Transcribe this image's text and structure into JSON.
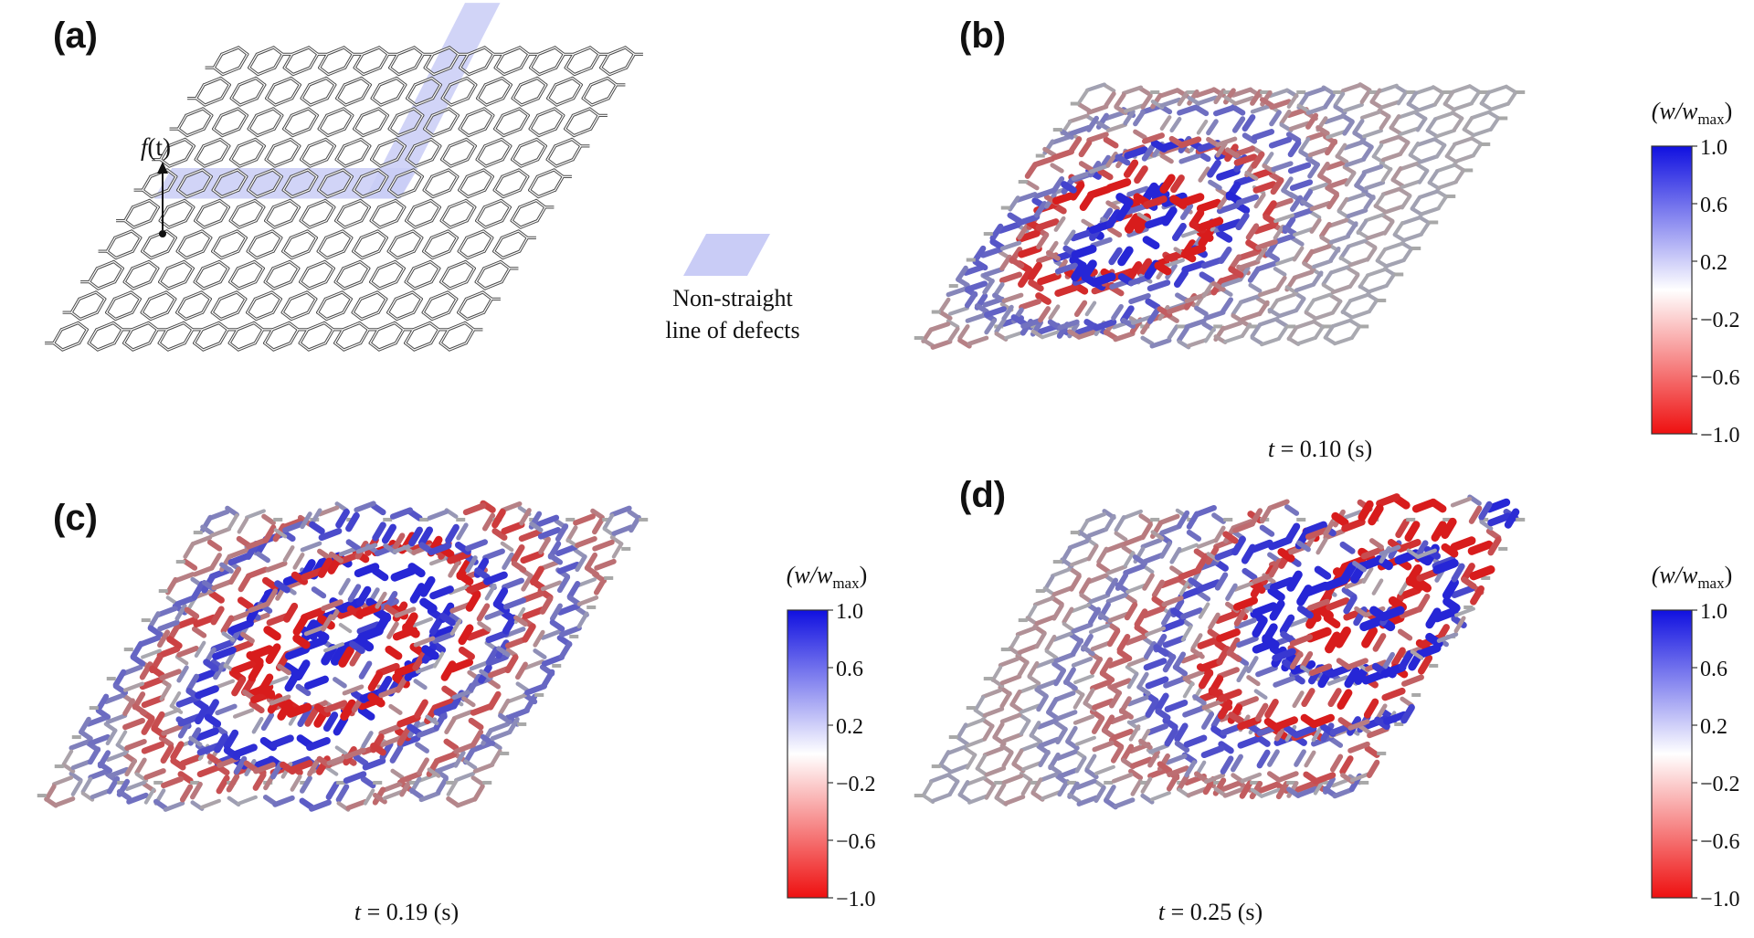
{
  "panels": [
    {
      "id": "a",
      "label": "(a)",
      "type": "lattice-defects"
    },
    {
      "id": "b",
      "label": "(b)",
      "time_caption": "t = 0.10 (s)",
      "time_var": "t",
      "time_rest": " = 0.10 (s)",
      "wave_center": [
        4,
        4.6
      ],
      "wave_spread": 3.0,
      "phase": 0.3
    },
    {
      "id": "c",
      "label": "(c)",
      "time_caption": "t = 0.19 (s)",
      "time_var": "t",
      "time_rest": " = 0.19 (s)",
      "wave_center": [
        6.0,
        5.5
      ],
      "wave_spread": 4.2,
      "phase": 1.2
    },
    {
      "id": "d",
      "label": "(d)",
      "time_caption": "t = 0.25 (s)",
      "time_var": "t",
      "time_rest": " = 0.25 (s)",
      "wave_center": [
        9.5,
        7.0
      ],
      "wave_spread": 4.8,
      "phase": 2.1
    }
  ],
  "force_label": {
    "text": "f(t)",
    "var": "f",
    "arg": "(t)"
  },
  "legend_note": {
    "line1": "Non-straight",
    "line2": "line of defects"
  },
  "colorbar": {
    "title": "(w/w_max)",
    "title_w": "(w/w",
    "title_sub": "max",
    "title_close": ")",
    "ticks": [
      "1.0",
      "0.6",
      "0.2",
      "−0.2",
      "−0.6",
      "−1.0"
    ],
    "color_top": "#1010e0",
    "color_mid": "#ffffff",
    "color_bottom": "#ee1010"
  },
  "colors": {
    "lattice_plain": "#a8a8a8",
    "lattice_outline": "#4a4a4a",
    "defect_band": "#c9ccf6",
    "positive": "#2a2ad8",
    "negative": "#d42020",
    "peak_dark": "#7a0a1a"
  }
}
